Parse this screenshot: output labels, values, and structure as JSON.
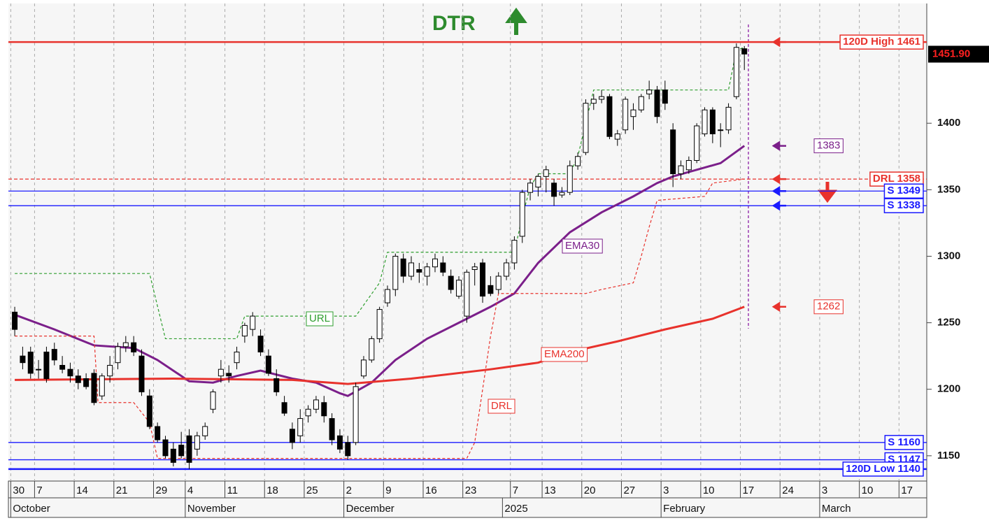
{
  "chart_data": {
    "type": "candlestick",
    "title": "DTR",
    "title_color": "#2e8b2e",
    "xlim": [
      -0.8,
      115
    ],
    "ylim": [
      1131,
      1490
    ],
    "yticks": [
      1150,
      1200,
      1250,
      1300,
      1350,
      1400
    ],
    "xticks": [
      {
        "value": 0,
        "label": "30"
      },
      {
        "value": 3,
        "label": "7"
      },
      {
        "value": 8,
        "label": "14"
      },
      {
        "value": 13,
        "label": "21"
      },
      {
        "value": 18,
        "label": "29"
      },
      {
        "value": 22,
        "label": "4"
      },
      {
        "value": 27,
        "label": "11"
      },
      {
        "value": 32,
        "label": "18"
      },
      {
        "value": 37,
        "label": "25"
      },
      {
        "value": 42,
        "label": "2"
      },
      {
        "value": 47,
        "label": "9"
      },
      {
        "value": 52,
        "label": "16"
      },
      {
        "value": 57,
        "label": "23"
      },
      {
        "value": 63,
        "label": "7"
      },
      {
        "value": 67,
        "label": "13"
      },
      {
        "value": 72,
        "label": "20"
      },
      {
        "value": 77,
        "label": "27"
      },
      {
        "value": 82,
        "label": "3"
      },
      {
        "value": 87,
        "label": "10"
      },
      {
        "value": 92,
        "label": "17"
      },
      {
        "value": 97,
        "label": "24"
      },
      {
        "value": 102,
        "label": "3"
      },
      {
        "value": 107,
        "label": "10"
      },
      {
        "value": 112,
        "label": "17"
      }
    ],
    "month_ticks": [
      {
        "value": 0,
        "label": "October"
      },
      {
        "value": 22,
        "label": "November"
      },
      {
        "value": 42,
        "label": "December"
      },
      {
        "value": 62,
        "label": "2025"
      },
      {
        "value": 82,
        "label": "February"
      },
      {
        "value": 102,
        "label": "March"
      }
    ],
    "grid": true,
    "x": [
      0,
      1,
      2,
      3,
      4,
      5,
      6,
      7,
      8,
      9,
      10,
      11,
      12,
      13,
      14,
      15,
      16,
      17,
      18,
      19,
      20,
      21,
      22,
      23,
      24,
      25,
      26,
      27,
      28,
      29,
      30,
      31,
      32,
      33,
      34,
      35,
      36,
      37,
      38,
      39,
      40,
      41,
      42,
      43,
      44,
      45,
      46,
      47,
      48,
      49,
      50,
      51,
      52,
      53,
      54,
      55,
      56,
      57,
      58,
      59,
      60,
      61,
      62,
      63,
      64,
      65,
      66,
      67,
      68,
      69,
      70,
      71,
      72,
      73,
      74,
      75,
      76,
      77,
      78,
      79,
      80,
      81,
      82,
      83,
      84,
      85,
      86,
      87,
      88,
      89,
      90,
      91,
      92
    ],
    "open": [
      1258,
      1225,
      1228,
      1215,
      1228,
      1230,
      1218,
      1215,
      1210,
      1208,
      1212,
      1195,
      1210,
      1220,
      1232,
      1235,
      1225,
      1195,
      1172,
      1162,
      1155,
      1158,
      1165,
      1155,
      1165,
      1185,
      1210,
      1212,
      1220,
      1240,
      1245,
      1240,
      1225,
      1208,
      1190,
      1170,
      1165,
      1180,
      1185,
      1190,
      1178,
      1165,
      1160,
      1160,
      1210,
      1222,
      1238,
      1265,
      1275,
      1298,
      1285,
      1290,
      1285,
      1292,
      1295,
      1285,
      1270,
      1255,
      1290,
      1295,
      1278,
      1275,
      1285,
      1295,
      1315,
      1348,
      1352,
      1360,
      1355,
      1346,
      1348,
      1368,
      1378,
      1415,
      1418,
      1420,
      1388,
      1395,
      1405,
      1410,
      1422,
      1425,
      1425,
      1395,
      1362,
      1365,
      1372,
      1392,
      1410,
      1395,
      1395,
      1420,
      1456
    ],
    "high": [
      1262,
      1232,
      1232,
      1222,
      1232,
      1235,
      1225,
      1220,
      1215,
      1212,
      1215,
      1212,
      1225,
      1235,
      1240,
      1240,
      1230,
      1200,
      1175,
      1165,
      1160,
      1168,
      1170,
      1168,
      1175,
      1200,
      1222,
      1218,
      1232,
      1250,
      1258,
      1245,
      1230,
      1215,
      1195,
      1175,
      1185,
      1188,
      1195,
      1195,
      1182,
      1170,
      1165,
      1205,
      1225,
      1240,
      1262,
      1278,
      1302,
      1302,
      1300,
      1295,
      1295,
      1302,
      1300,
      1290,
      1285,
      1290,
      1295,
      1298,
      1285,
      1288,
      1298,
      1315,
      1350,
      1358,
      1362,
      1368,
      1358,
      1352,
      1372,
      1378,
      1418,
      1422,
      1425,
      1422,
      1395,
      1420,
      1415,
      1422,
      1432,
      1428,
      1432,
      1400,
      1372,
      1375,
      1400,
      1412,
      1412,
      1400,
      1415,
      1460,
      1458
    ],
    "low": [
      1240,
      1215,
      1208,
      1208,
      1205,
      1218,
      1212,
      1205,
      1200,
      1200,
      1188,
      1192,
      1205,
      1215,
      1228,
      1225,
      1195,
      1170,
      1160,
      1148,
      1142,
      1148,
      1140,
      1150,
      1162,
      1182,
      1205,
      1205,
      1215,
      1235,
      1240,
      1225,
      1210,
      1195,
      1180,
      1155,
      1160,
      1175,
      1182,
      1175,
      1158,
      1152,
      1147,
      1158,
      1208,
      1220,
      1235,
      1262,
      1270,
      1280,
      1282,
      1280,
      1278,
      1288,
      1285,
      1272,
      1268,
      1250,
      1278,
      1265,
      1270,
      1272,
      1282,
      1290,
      1310,
      1342,
      1345,
      1348,
      1338,
      1344,
      1346,
      1365,
      1376,
      1410,
      1415,
      1388,
      1383,
      1392,
      1395,
      1408,
      1418,
      1400,
      1410,
      1352,
      1358,
      1362,
      1370,
      1390,
      1385,
      1382,
      1392,
      1418,
      1440
    ],
    "close": [
      1245,
      1220,
      1212,
      1215,
      1208,
      1222,
      1215,
      1210,
      1205,
      1202,
      1190,
      1210,
      1218,
      1232,
      1235,
      1228,
      1198,
      1172,
      1162,
      1150,
      1145,
      1150,
      1145,
      1165,
      1172,
      1198,
      1215,
      1210,
      1228,
      1248,
      1255,
      1228,
      1212,
      1198,
      1182,
      1160,
      1178,
      1185,
      1192,
      1180,
      1162,
      1155,
      1150,
      1202,
      1222,
      1238,
      1260,
      1275,
      1300,
      1285,
      1295,
      1288,
      1292,
      1298,
      1288,
      1275,
      1282,
      1288,
      1292,
      1270,
      1272,
      1285,
      1295,
      1312,
      1348,
      1355,
      1360,
      1365,
      1345,
      1348,
      1368,
      1375,
      1415,
      1418,
      1420,
      1390,
      1392,
      1418,
      1410,
      1420,
      1425,
      1405,
      1415,
      1362,
      1368,
      1372,
      1398,
      1410,
      1392,
      1395,
      1412,
      1457,
      1452
    ],
    "series": [
      {
        "name": "EMA30",
        "color": "#7b1f8a",
        "style": "solid",
        "x": [
          0,
          5,
          10,
          15,
          18,
          22,
          25,
          28,
          31,
          35,
          38,
          41,
          42,
          45,
          48,
          52,
          56,
          60,
          63,
          66,
          70,
          74,
          78,
          81,
          83,
          86,
          89,
          92
        ],
        "values": [
          1256,
          1245,
          1233,
          1231,
          1222,
          1206,
          1205,
          1210,
          1214,
          1208,
          1205,
          1197,
          1195,
          1205,
          1222,
          1238,
          1250,
          1262,
          1272,
          1295,
          1318,
          1333,
          1345,
          1355,
          1360,
          1365,
          1370,
          1383
        ]
      },
      {
        "name": "EMA200",
        "color": "#e8322c",
        "style": "solid",
        "x": [
          0,
          20,
          35,
          42,
          50,
          60,
          66,
          70,
          76,
          82,
          88,
          92
        ],
        "values": [
          1207,
          1208,
          1207,
          1204,
          1208,
          1215,
          1220,
          1228,
          1236,
          1245,
          1253,
          1262
        ]
      },
      {
        "name": "URL",
        "color": "#2e9e2e",
        "style": "dashed",
        "x": [
          0,
          17,
          19,
          28,
          29,
          43,
          46,
          47,
          63,
          64,
          65,
          66,
          70,
          71,
          72,
          73,
          90,
          91,
          92
        ],
        "values": [
          1287,
          1287,
          1238,
          1238,
          1255,
          1255,
          1280,
          1303,
          1303,
          1330,
          1352,
          1362,
          1362,
          1375,
          1400,
          1425,
          1425,
          1455,
          1457
        ]
      },
      {
        "name": "DRL",
        "color": "#e8322c",
        "style": "dashed",
        "x": [
          0,
          10,
          10.5,
          15,
          17,
          18,
          57,
          58,
          59,
          60,
          61,
          72,
          74,
          78,
          79,
          80,
          81,
          87,
          88,
          92
        ],
        "values": [
          1240,
          1240,
          1190,
          1190,
          1175,
          1148,
          1148,
          1160,
          1200,
          1240,
          1272,
          1272,
          1275,
          1280,
          1300,
          1322,
          1342,
          1345,
          1355,
          1358
        ]
      }
    ],
    "levels": [
      {
        "label": "120D High 1461",
        "value": 1461,
        "color": "#e8322c",
        "style": "solid"
      },
      {
        "label": "DRL 1358",
        "value": 1358,
        "color": "#e8322c",
        "style": "dashed"
      },
      {
        "label": "S 1349",
        "value": 1349,
        "color": "#1a1aff",
        "style": "solid"
      },
      {
        "label": "S 1338",
        "value": 1338,
        "color": "#1a1aff",
        "style": "solid"
      },
      {
        "label": "S 1160",
        "value": 1160,
        "color": "#1a1aff",
        "style": "solid"
      },
      {
        "label": "S 1147",
        "value": 1147,
        "color": "#1a1aff",
        "style": "solid"
      },
      {
        "label": "120D Low 1140",
        "value": 1140,
        "color": "#1a1aff",
        "style": "thick"
      }
    ],
    "annotations": [
      {
        "value": 1383,
        "color": "#7b1f8a"
      },
      {
        "value": 1262,
        "color": "#e8322c"
      }
    ],
    "last_price": {
      "value": 1451.9,
      "label": "1451.90"
    }
  }
}
